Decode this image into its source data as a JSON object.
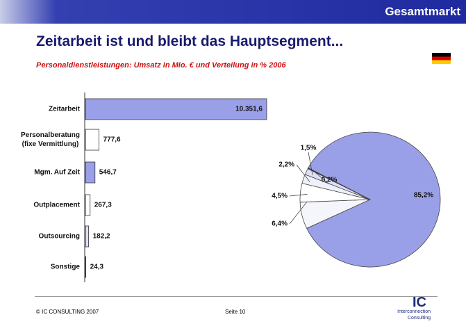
{
  "header": "Gesamtmarkt",
  "title": "Zeitarbeit ist und bleibt das Hauptsegment...",
  "subtitle": "Personaldienstleistungen: Umsatz in Mio. € und Verteilung in % 2006",
  "chart_data": [
    {
      "type": "bar",
      "categories": [
        "Zeitarbeit",
        "Personalberatung\n(fixe Vermittlung)",
        "Mgm. Auf Zeit",
        "Outplacement",
        "Outsourcing",
        "Sonstige"
      ],
      "values": [
        10351.6,
        777.6,
        546.7,
        267.3,
        182.2,
        24.3
      ],
      "value_labels": [
        "10.351,6",
        "777,6",
        "546,7",
        "267,3",
        "182,2",
        "24,3"
      ],
      "colors": [
        "#9aa0e8",
        "#ffffff",
        "#9aa0e8",
        "#ffffff",
        "#dde0f7",
        "#ffffff"
      ]
    },
    {
      "type": "pie",
      "values": [
        85.2,
        6.4,
        4.5,
        2.2,
        1.5,
        0.2
      ],
      "value_labels": [
        "85,2%",
        "6,4%",
        "4,5%",
        "2,2%",
        "1,5%",
        "0,2%"
      ],
      "colors": [
        "#9aa0e8",
        "#f4f6fc",
        "#ffffff",
        "#eef0fa",
        "#dde0f5",
        "#1f2a7a"
      ]
    }
  ],
  "footer": {
    "copyright": "© IC CONSULTING 2007",
    "page": "Seite 10",
    "logo": "IC",
    "logo_text": "Interconnection\nConsulting"
  }
}
